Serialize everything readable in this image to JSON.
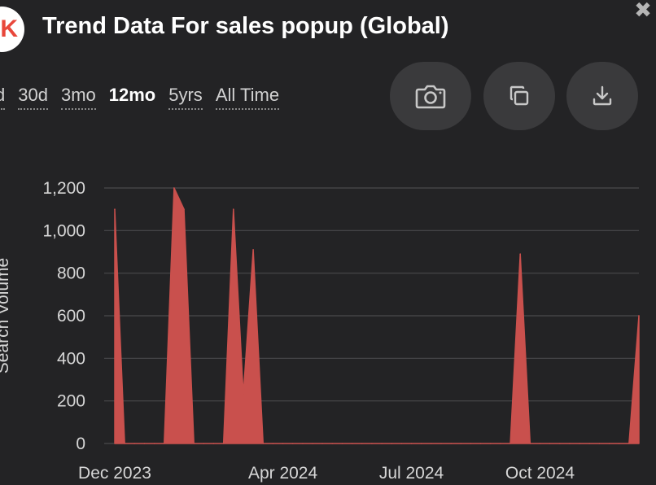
{
  "header": {
    "logo_letter": "K",
    "title": "Trend Data For sales popup (Global)"
  },
  "close_glyph": "✖",
  "ranges": [
    {
      "label": "d",
      "active": false
    },
    {
      "label": "30d",
      "active": false
    },
    {
      "label": "3mo",
      "active": false
    },
    {
      "label": "12mo",
      "active": true
    },
    {
      "label": "5yrs",
      "active": false
    },
    {
      "label": "All Time",
      "active": false
    }
  ],
  "actions": [
    {
      "icon": "camera-icon"
    },
    {
      "icon": "copy-icon"
    },
    {
      "icon": "download-icon"
    }
  ],
  "colors": {
    "background": "#232325",
    "area_fill": "#c9504d",
    "button_bg": "#3a3a3c",
    "grid": "#4a4a4c"
  },
  "chart_data": {
    "type": "area",
    "title": "",
    "xlabel": "",
    "ylabel": "Search Volume",
    "ylim": [
      0,
      1200
    ],
    "yticks": [
      0,
      200,
      400,
      600,
      800,
      1000,
      1200
    ],
    "ytick_labels": [
      "0",
      "200",
      "400",
      "600",
      "800",
      "1,000",
      "1,200"
    ],
    "xtick_labels": [
      "Dec 2023",
      "Apr 2024",
      "Jul 2024",
      "Oct 2024"
    ],
    "xtick_weeks": [
      0,
      17,
      30,
      43
    ],
    "grid": true,
    "legend": "none",
    "series": [
      {
        "values": [
          1100,
          0,
          0,
          0,
          0,
          0,
          1200,
          1100,
          0,
          0,
          0,
          0,
          1100,
          230,
          910,
          0,
          0,
          0,
          0,
          0,
          0,
          0,
          0,
          0,
          0,
          0,
          0,
          0,
          0,
          0,
          0,
          0,
          0,
          0,
          0,
          0,
          0,
          0,
          0,
          0,
          0,
          890,
          0,
          0,
          0,
          0,
          0,
          0,
          0,
          0,
          0,
          0,
          0,
          600
        ]
      }
    ]
  }
}
